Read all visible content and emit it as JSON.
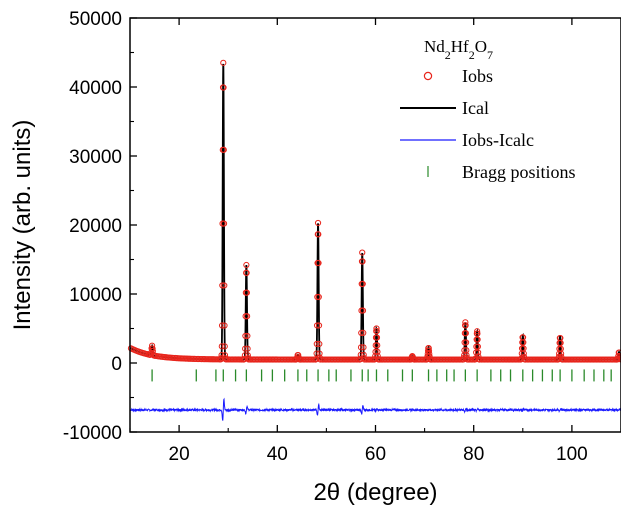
{
  "chart_data": {
    "type": "line",
    "xlabel": "2θ (degree)",
    "ylabel": "Intensity (arb. units)",
    "xlim": [
      10,
      110
    ],
    "ylim": [
      -10000,
      50000
    ],
    "x_ticks": [
      20,
      40,
      60,
      80,
      100
    ],
    "y_ticks": [
      -10000,
      0,
      10000,
      20000,
      30000,
      40000,
      50000
    ],
    "grid": false,
    "legend_placement": "top-right",
    "legend_title": {
      "base1": "Nd",
      "sub1": "2",
      "base2": "Hf",
      "sub2": "2",
      "base3": "O",
      "sub3": "7"
    },
    "background": "1200 decaying to 500",
    "series": [
      {
        "name": "Iobs",
        "style": "open-circle",
        "color": "#e8251c"
      },
      {
        "name": "Ical",
        "style": "line",
        "color": "#000000"
      },
      {
        "name": "Iobs-Icalc",
        "style": "line",
        "color": "#1a1aff",
        "offset": -6800
      },
      {
        "name": "Bragg positions",
        "style": "vertical-tick",
        "color": "#2a8a2a",
        "baseline": -1800
      }
    ],
    "peaks": [
      {
        "x": 14.5,
        "y": 2500
      },
      {
        "x": 29.0,
        "y": 43500
      },
      {
        "x": 33.7,
        "y": 14200
      },
      {
        "x": 44.2,
        "y": 1200
      },
      {
        "x": 48.3,
        "y": 20300
      },
      {
        "x": 57.3,
        "y": 16000
      },
      {
        "x": 60.2,
        "y": 5000
      },
      {
        "x": 67.5,
        "y": 1000
      },
      {
        "x": 70.8,
        "y": 2300
      },
      {
        "x": 78.3,
        "y": 5900
      },
      {
        "x": 80.7,
        "y": 4600
      },
      {
        "x": 90.0,
        "y": 4000
      },
      {
        "x": 97.6,
        "y": 3900
      },
      {
        "x": 109.6,
        "y": 1600
      }
    ],
    "bragg_positions": [
      14.5,
      23.5,
      27.5,
      29.0,
      31.5,
      33.7,
      36.8,
      39.0,
      41.5,
      44.2,
      46.0,
      48.3,
      50.5,
      52.0,
      55.0,
      57.3,
      58.5,
      60.2,
      62.5,
      65.5,
      67.5,
      70.8,
      72.5,
      74.5,
      76.0,
      78.3,
      80.7,
      83.5,
      85.5,
      87.5,
      90.0,
      92.0,
      94.0,
      96.0,
      97.6,
      100.0,
      102.5,
      104.5,
      106.5,
      108.0
    ]
  }
}
